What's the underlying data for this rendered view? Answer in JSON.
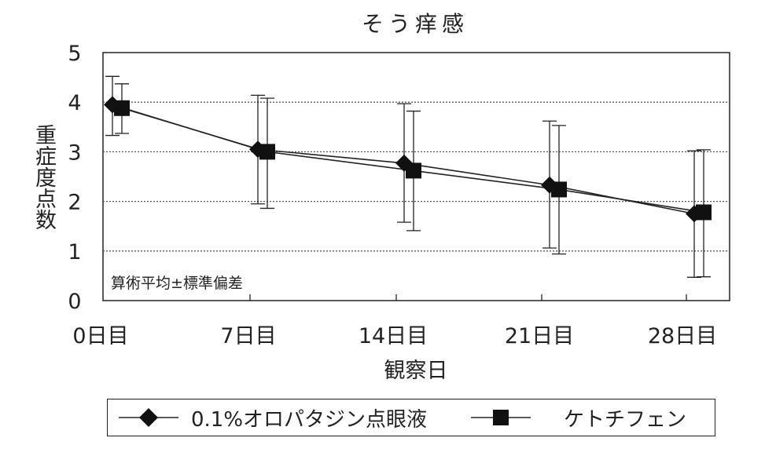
{
  "chart_data": {
    "type": "line",
    "title": "そう痒感",
    "xlabel": "観察日",
    "ylabel": "重症度点数",
    "categories": [
      "0日目",
      "7日目",
      "14日目",
      "21日目",
      "28日目"
    ],
    "ylim": [
      0,
      5
    ],
    "yticks": [
      "0",
      "1",
      "2",
      "3",
      "4",
      "5"
    ],
    "grid": "horizontal dotted",
    "annotation": "算術平均±標準偏差",
    "series": [
      {
        "name": "0.1%オロパタジン点眼液",
        "marker": "diamond",
        "values": [
          3.95,
          3.05,
          2.77,
          2.33,
          1.75
        ],
        "sd_low": [
          3.33,
          1.95,
          1.58,
          1.06,
          0.47
        ],
        "sd_high": [
          4.52,
          4.14,
          3.97,
          3.62,
          3.02
        ]
      },
      {
        "name": "ケトチフェン",
        "marker": "square",
        "values": [
          3.88,
          3.0,
          2.62,
          2.24,
          1.78
        ],
        "sd_low": [
          3.37,
          1.86,
          1.41,
          0.94,
          0.48
        ],
        "sd_high": [
          4.37,
          4.08,
          3.82,
          3.53,
          3.04
        ]
      }
    ],
    "legend_position": "bottom",
    "colors": {
      "line": "#222222",
      "marker": "#111111",
      "grid": "#555555"
    }
  }
}
